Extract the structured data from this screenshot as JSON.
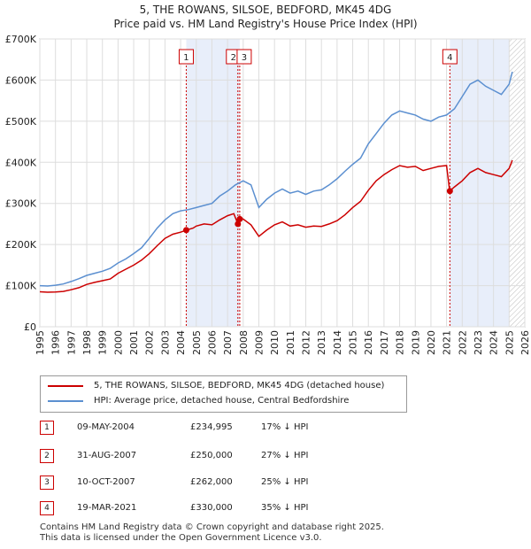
{
  "header": {
    "title": "5, THE ROWANS, SILSOE, BEDFORD, MK45 4DG",
    "subtitle": "Price paid vs. HM Land Registry's House Price Index (HPI)"
  },
  "chart_data": {
    "type": "line",
    "x_range": [
      1995,
      2026
    ],
    "ylim": [
      0,
      700000
    ],
    "y_ticks": [
      {
        "value": 0,
        "label": "£0"
      },
      {
        "value": 100000,
        "label": "£100K"
      },
      {
        "value": 200000,
        "label": "£200K"
      },
      {
        "value": 300000,
        "label": "£300K"
      },
      {
        "value": 400000,
        "label": "£400K"
      },
      {
        "value": 500000,
        "label": "£500K"
      },
      {
        "value": 600000,
        "label": "£600K"
      },
      {
        "value": 700000,
        "label": "£700K"
      }
    ],
    "x_ticks": [
      "1995",
      "1996",
      "1997",
      "1998",
      "1999",
      "2000",
      "2001",
      "2002",
      "2003",
      "2004",
      "2005",
      "2006",
      "2007",
      "2008",
      "2009",
      "2010",
      "2011",
      "2012",
      "2013",
      "2014",
      "2015",
      "2016",
      "2017",
      "2018",
      "2019",
      "2020",
      "2021",
      "2022",
      "2023",
      "2024",
      "2025",
      "2026"
    ],
    "grid": true,
    "forecast_from": 2025.0,
    "series": [
      {
        "name": "5, THE ROWANS, SILSOE, BEDFORD, MK45 4DG (detached house)",
        "color": "#cc0000",
        "points": [
          [
            1995.0,
            85000
          ],
          [
            1995.5,
            84000
          ],
          [
            1996.0,
            84500
          ],
          [
            1996.5,
            86000
          ],
          [
            1997.0,
            90000
          ],
          [
            1997.5,
            95000
          ],
          [
            1998.0,
            103000
          ],
          [
            1998.5,
            108000
          ],
          [
            1999.0,
            112000
          ],
          [
            1999.5,
            116000
          ],
          [
            2000.0,
            130000
          ],
          [
            2000.5,
            140000
          ],
          [
            2001.0,
            150000
          ],
          [
            2001.5,
            162000
          ],
          [
            2002.0,
            178000
          ],
          [
            2002.5,
            197000
          ],
          [
            2003.0,
            215000
          ],
          [
            2003.5,
            225000
          ],
          [
            2004.0,
            230000
          ],
          [
            2004.36,
            234995
          ],
          [
            2004.8,
            240000
          ],
          [
            2005.0,
            245000
          ],
          [
            2005.5,
            250000
          ],
          [
            2006.0,
            248000
          ],
          [
            2006.5,
            260000
          ],
          [
            2007.0,
            270000
          ],
          [
            2007.4,
            275000
          ],
          [
            2007.66,
            250000
          ],
          [
            2007.78,
            262000
          ],
          [
            2008.0,
            262000
          ],
          [
            2008.5,
            248000
          ],
          [
            2009.0,
            220000
          ],
          [
            2009.5,
            235000
          ],
          [
            2010.0,
            248000
          ],
          [
            2010.5,
            255000
          ],
          [
            2011.0,
            245000
          ],
          [
            2011.5,
            248000
          ],
          [
            2012.0,
            242000
          ],
          [
            2012.5,
            245000
          ],
          [
            2013.0,
            244000
          ],
          [
            2013.5,
            250000
          ],
          [
            2014.0,
            258000
          ],
          [
            2014.5,
            272000
          ],
          [
            2015.0,
            290000
          ],
          [
            2015.5,
            305000
          ],
          [
            2016.0,
            332000
          ],
          [
            2016.5,
            355000
          ],
          [
            2017.0,
            370000
          ],
          [
            2017.5,
            382000
          ],
          [
            2018.0,
            392000
          ],
          [
            2018.5,
            388000
          ],
          [
            2019.0,
            390000
          ],
          [
            2019.5,
            380000
          ],
          [
            2020.0,
            385000
          ],
          [
            2020.5,
            390000
          ],
          [
            2021.0,
            392000
          ],
          [
            2021.2,
            330000
          ],
          [
            2021.5,
            340000
          ],
          [
            2022.0,
            355000
          ],
          [
            2022.5,
            375000
          ],
          [
            2023.0,
            385000
          ],
          [
            2023.5,
            375000
          ],
          [
            2024.0,
            370000
          ],
          [
            2024.5,
            365000
          ],
          [
            2025.0,
            385000
          ],
          [
            2025.2,
            405000
          ]
        ]
      },
      {
        "name": "HPI: Average price, detached house, Central Bedfordshire",
        "color": "#5b8fd0",
        "points": [
          [
            1995.0,
            100000
          ],
          [
            1995.5,
            99000
          ],
          [
            1996.0,
            101000
          ],
          [
            1996.5,
            104000
          ],
          [
            1997.0,
            110000
          ],
          [
            1997.5,
            117000
          ],
          [
            1998.0,
            125000
          ],
          [
            1998.5,
            130000
          ],
          [
            1999.0,
            135000
          ],
          [
            1999.5,
            142000
          ],
          [
            2000.0,
            155000
          ],
          [
            2000.5,
            165000
          ],
          [
            2001.0,
            178000
          ],
          [
            2001.5,
            192000
          ],
          [
            2002.0,
            215000
          ],
          [
            2002.5,
            240000
          ],
          [
            2003.0,
            260000
          ],
          [
            2003.5,
            275000
          ],
          [
            2004.0,
            282000
          ],
          [
            2004.5,
            285000
          ],
          [
            2005.0,
            290000
          ],
          [
            2005.5,
            295000
          ],
          [
            2006.0,
            300000
          ],
          [
            2006.5,
            318000
          ],
          [
            2007.0,
            330000
          ],
          [
            2007.5,
            345000
          ],
          [
            2008.0,
            355000
          ],
          [
            2008.5,
            345000
          ],
          [
            2009.0,
            290000
          ],
          [
            2009.5,
            310000
          ],
          [
            2010.0,
            325000
          ],
          [
            2010.5,
            335000
          ],
          [
            2011.0,
            325000
          ],
          [
            2011.5,
            330000
          ],
          [
            2012.0,
            322000
          ],
          [
            2012.5,
            330000
          ],
          [
            2013.0,
            333000
          ],
          [
            2013.5,
            345000
          ],
          [
            2014.0,
            360000
          ],
          [
            2014.5,
            378000
          ],
          [
            2015.0,
            395000
          ],
          [
            2015.5,
            410000
          ],
          [
            2016.0,
            445000
          ],
          [
            2016.5,
            470000
          ],
          [
            2017.0,
            495000
          ],
          [
            2017.5,
            515000
          ],
          [
            2018.0,
            525000
          ],
          [
            2018.5,
            520000
          ],
          [
            2019.0,
            515000
          ],
          [
            2019.5,
            505000
          ],
          [
            2020.0,
            500000
          ],
          [
            2020.5,
            510000
          ],
          [
            2021.0,
            515000
          ],
          [
            2021.5,
            530000
          ],
          [
            2022.0,
            560000
          ],
          [
            2022.5,
            590000
          ],
          [
            2023.0,
            600000
          ],
          [
            2023.5,
            585000
          ],
          [
            2024.0,
            575000
          ],
          [
            2024.5,
            565000
          ],
          [
            2025.0,
            590000
          ],
          [
            2025.2,
            620000
          ]
        ]
      }
    ],
    "sales": [
      {
        "id": "1",
        "x": 2004.36,
        "price": 234995
      },
      {
        "id": "2",
        "x": 2007.66,
        "price": 250000
      },
      {
        "id": "3",
        "x": 2007.78,
        "price": 262000
      },
      {
        "id": "4",
        "x": 2021.21,
        "price": 330000
      }
    ],
    "shaded_spans": [
      [
        2004.36,
        2007.78
      ],
      [
        2021.21,
        2025.0
      ]
    ]
  },
  "legend": {
    "property_label": "5, THE ROWANS, SILSOE, BEDFORD, MK45 4DG (detached house)",
    "hpi_label": "HPI: Average price, detached house, Central Bedfordshire"
  },
  "transactions": [
    {
      "num": "1",
      "date": "09-MAY-2004",
      "price": "£234,995",
      "hpi": "17% ↓ HPI"
    },
    {
      "num": "2",
      "date": "31-AUG-2007",
      "price": "£250,000",
      "hpi": "27% ↓ HPI"
    },
    {
      "num": "3",
      "date": "10-OCT-2007",
      "price": "£262,000",
      "hpi": "25% ↓ HPI"
    },
    {
      "num": "4",
      "date": "19-MAR-2021",
      "price": "£330,000",
      "hpi": "35% ↓ HPI"
    }
  ],
  "footer": {
    "line1": "Contains HM Land Registry data © Crown copyright and database right 2025.",
    "line2": "This data is licensed under the Open Government Licence v3.0."
  }
}
